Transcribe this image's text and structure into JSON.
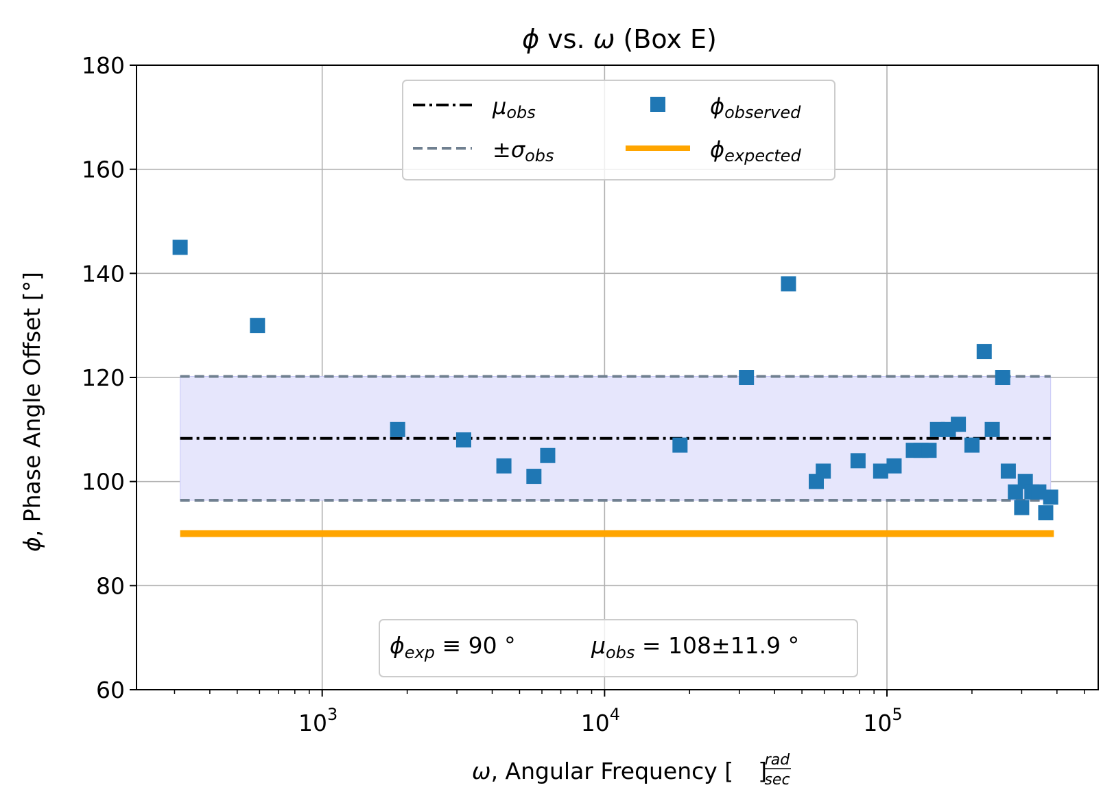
{
  "chart_data": {
    "type": "scatter",
    "title": "ϕ vs. ω (Box E)",
    "title_parts": {
      "phi": "ϕ",
      "vs": "vs.",
      "omega": "ω",
      "box": "(Box E)"
    },
    "xlabel": {
      "omega": "ω",
      "text": ", Angular Frequency [",
      "frac_num": "rad",
      "frac_den": "sec",
      "close": "]"
    },
    "ylabel": {
      "phi": "ϕ",
      "text": ", Phase Angle Offset [°]"
    },
    "x_scale": "log",
    "xlim": [
      220,
      560000
    ],
    "ylim": [
      60,
      180
    ],
    "y_ticks": [
      "60",
      "80",
      "100",
      "120",
      "140",
      "160",
      "180"
    ],
    "x_ticks": [
      {
        "value": 1000,
        "base": "10",
        "exp": "3"
      },
      {
        "value": 10000,
        "base": "10",
        "exp": "4"
      },
      {
        "value": 100000,
        "base": "10",
        "exp": "5"
      }
    ],
    "grid": true,
    "series": [
      {
        "kind": "points",
        "color": "#1f77b4",
        "points": [
          [
            314,
            145
          ],
          [
            590,
            130
          ],
          [
            1850,
            110
          ],
          [
            3170,
            108
          ],
          [
            4400,
            103
          ],
          [
            5620,
            101
          ],
          [
            6290,
            105
          ],
          [
            18500,
            107
          ],
          [
            31800,
            120
          ],
          [
            44800,
            138
          ],
          [
            56200,
            100
          ],
          [
            59500,
            102
          ],
          [
            79000,
            104
          ],
          [
            95000,
            102
          ],
          [
            106000,
            103
          ],
          [
            124000,
            106
          ],
          [
            132000,
            106
          ],
          [
            141000,
            106
          ],
          [
            151000,
            110
          ],
          [
            165000,
            110
          ],
          [
            179000,
            111
          ],
          [
            200000,
            107
          ],
          [
            221000,
            125
          ],
          [
            236000,
            110
          ],
          [
            257000,
            120
          ],
          [
            269000,
            102
          ],
          [
            285000,
            98
          ],
          [
            300000,
            95
          ],
          [
            309000,
            100
          ],
          [
            326000,
            98
          ],
          [
            345000,
            98
          ],
          [
            365000,
            94
          ],
          [
            380000,
            97
          ]
        ]
      },
      {
        "kind": "mean",
        "color": "#000000",
        "y": 108.3,
        "x_range": [
          314,
          380000
        ]
      },
      {
        "kind": "std",
        "color": "#708090",
        "y_upper": 120.2,
        "y_lower": 96.4,
        "x_range": [
          314,
          380000
        ],
        "fill": "#e6e6fc"
      },
      {
        "kind": "expected",
        "color": "#ffa500",
        "y": 90,
        "x_range": [
          314,
          390000
        ]
      }
    ],
    "legend": {
      "placement": "upper center",
      "entries": [
        {
          "key": "mean",
          "sym": "μ",
          "sub": "obs",
          "prefix": ""
        },
        {
          "key": "observed",
          "sym": "ϕ",
          "sub": "observed",
          "prefix": ""
        },
        {
          "key": "std",
          "sym": "σ",
          "sub": "obs",
          "prefix": "±"
        },
        {
          "key": "expected",
          "sym": "ϕ",
          "sub": "expected",
          "prefix": ""
        }
      ]
    },
    "annotation": {
      "placement": "lower center",
      "left": {
        "sym": "ϕ",
        "sub": "exp",
        "rest": " ≡ 90 °"
      },
      "right": {
        "sym": "μ",
        "sub": "obs",
        "rest": " = 108±11.9 °"
      }
    }
  }
}
